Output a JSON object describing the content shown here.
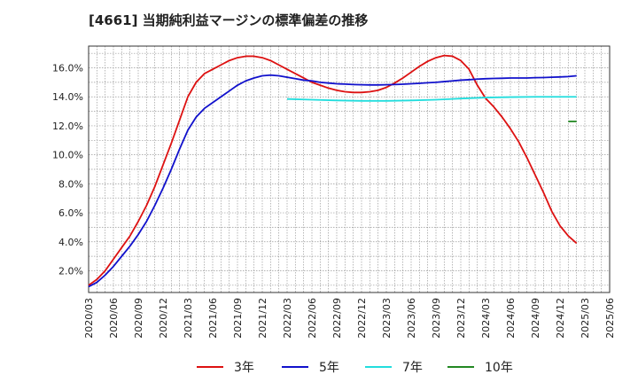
{
  "chart_data": {
    "type": "line",
    "title": "[4661]  当期純利益マージンの標準偏差の推移",
    "xlabel": "",
    "ylabel": "",
    "ylim": [
      0.5,
      17.5
    ],
    "xlim": [
      "2020/03",
      "2025/06"
    ],
    "grid": true,
    "legend_position": "bottom",
    "y_ticks": [
      "2.0%",
      "4.0%",
      "6.0%",
      "8.0%",
      "10.0%",
      "12.0%",
      "14.0%",
      "16.0%"
    ],
    "x_ticks": [
      "2020/03",
      "2020/06",
      "2020/09",
      "2020/12",
      "2021/03",
      "2021/06",
      "2021/09",
      "2021/12",
      "2022/03",
      "2022/06",
      "2022/09",
      "2022/12",
      "2023/03",
      "2023/06",
      "2023/09",
      "2023/12",
      "2024/03",
      "2024/06",
      "2024/09",
      "2024/12",
      "2025/03",
      "2025/06"
    ],
    "series": [
      {
        "name": "3年",
        "color": "#dd1111",
        "points": [
          [
            "2020/03",
            1.0
          ],
          [
            "2020/04",
            1.4
          ],
          [
            "2020/05",
            2.0
          ],
          [
            "2020/06",
            2.8
          ],
          [
            "2020/07",
            3.6
          ],
          [
            "2020/08",
            4.4
          ],
          [
            "2020/09",
            5.4
          ],
          [
            "2020/10",
            6.5
          ],
          [
            "2020/11",
            7.8
          ],
          [
            "2020/12",
            9.3
          ],
          [
            "2021/01",
            10.8
          ],
          [
            "2021/02",
            12.4
          ],
          [
            "2021/03",
            14.0
          ],
          [
            "2021/04",
            15.0
          ],
          [
            "2021/05",
            15.6
          ],
          [
            "2021/06",
            15.9
          ],
          [
            "2021/07",
            16.2
          ],
          [
            "2021/08",
            16.5
          ],
          [
            "2021/09",
            16.7
          ],
          [
            "2021/10",
            16.8
          ],
          [
            "2021/11",
            16.8
          ],
          [
            "2021/12",
            16.7
          ],
          [
            "2022/01",
            16.5
          ],
          [
            "2022/02",
            16.2
          ],
          [
            "2022/03",
            15.9
          ],
          [
            "2022/04",
            15.6
          ],
          [
            "2022/05",
            15.3
          ],
          [
            "2022/06",
            15.0
          ],
          [
            "2022/07",
            14.8
          ],
          [
            "2022/08",
            14.6
          ],
          [
            "2022/09",
            14.45
          ],
          [
            "2022/10",
            14.35
          ],
          [
            "2022/11",
            14.3
          ],
          [
            "2022/12",
            14.3
          ],
          [
            "2023/01",
            14.35
          ],
          [
            "2023/02",
            14.45
          ],
          [
            "2023/03",
            14.65
          ],
          [
            "2023/04",
            14.95
          ],
          [
            "2023/05",
            15.3
          ],
          [
            "2023/06",
            15.7
          ],
          [
            "2023/07",
            16.1
          ],
          [
            "2023/08",
            16.45
          ],
          [
            "2023/09",
            16.7
          ],
          [
            "2023/10",
            16.85
          ],
          [
            "2023/11",
            16.8
          ],
          [
            "2023/12",
            16.5
          ],
          [
            "2024/01",
            15.9
          ],
          [
            "2024/02",
            14.8
          ],
          [
            "2024/03",
            13.9
          ],
          [
            "2024/04",
            13.3
          ],
          [
            "2024/05",
            12.6
          ],
          [
            "2024/06",
            11.8
          ],
          [
            "2024/07",
            10.9
          ],
          [
            "2024/08",
            9.8
          ],
          [
            "2024/09",
            8.6
          ],
          [
            "2024/10",
            7.4
          ],
          [
            "2024/11",
            6.1
          ],
          [
            "2024/12",
            5.1
          ],
          [
            "2025/01",
            4.4
          ],
          [
            "2025/02",
            3.9
          ]
        ]
      },
      {
        "name": "5年",
        "color": "#1111cc",
        "points": [
          [
            "2020/03",
            0.9
          ],
          [
            "2020/04",
            1.2
          ],
          [
            "2020/05",
            1.7
          ],
          [
            "2020/06",
            2.3
          ],
          [
            "2020/07",
            3.0
          ],
          [
            "2020/08",
            3.7
          ],
          [
            "2020/09",
            4.5
          ],
          [
            "2020/10",
            5.4
          ],
          [
            "2020/11",
            6.5
          ],
          [
            "2020/12",
            7.7
          ],
          [
            "2021/01",
            9.0
          ],
          [
            "2021/02",
            10.4
          ],
          [
            "2021/03",
            11.7
          ],
          [
            "2021/04",
            12.6
          ],
          [
            "2021/05",
            13.2
          ],
          [
            "2021/06",
            13.6
          ],
          [
            "2021/07",
            14.0
          ],
          [
            "2021/08",
            14.4
          ],
          [
            "2021/09",
            14.8
          ],
          [
            "2021/10",
            15.1
          ],
          [
            "2021/11",
            15.3
          ],
          [
            "2021/12",
            15.45
          ],
          [
            "2022/01",
            15.5
          ],
          [
            "2022/02",
            15.45
          ],
          [
            "2022/03",
            15.35
          ],
          [
            "2022/04",
            15.25
          ],
          [
            "2022/05",
            15.15
          ],
          [
            "2022/06",
            15.1
          ],
          [
            "2022/07",
            15.0
          ],
          [
            "2022/08",
            14.95
          ],
          [
            "2022/09",
            14.9
          ],
          [
            "2022/10",
            14.88
          ],
          [
            "2022/11",
            14.85
          ],
          [
            "2022/12",
            14.83
          ],
          [
            "2023/01",
            14.82
          ],
          [
            "2023/02",
            14.82
          ],
          [
            "2023/03",
            14.83
          ],
          [
            "2023/04",
            14.85
          ],
          [
            "2023/05",
            14.87
          ],
          [
            "2023/06",
            14.9
          ],
          [
            "2023/07",
            14.93
          ],
          [
            "2023/08",
            14.97
          ],
          [
            "2023/09",
            15.0
          ],
          [
            "2023/10",
            15.05
          ],
          [
            "2023/11",
            15.1
          ],
          [
            "2023/12",
            15.15
          ],
          [
            "2024/01",
            15.18
          ],
          [
            "2024/02",
            15.22
          ],
          [
            "2024/03",
            15.25
          ],
          [
            "2024/04",
            15.27
          ],
          [
            "2024/05",
            15.28
          ],
          [
            "2024/06",
            15.3
          ],
          [
            "2024/07",
            15.3
          ],
          [
            "2024/08",
            15.3
          ],
          [
            "2024/09",
            15.32
          ],
          [
            "2024/10",
            15.33
          ],
          [
            "2024/11",
            15.35
          ],
          [
            "2024/12",
            15.37
          ],
          [
            "2025/01",
            15.4
          ],
          [
            "2025/02",
            15.45
          ]
        ]
      },
      {
        "name": "7年",
        "color": "#22dddd",
        "points": [
          [
            "2022/03",
            13.85
          ],
          [
            "2022/06",
            13.8
          ],
          [
            "2022/09",
            13.75
          ],
          [
            "2022/12",
            13.72
          ],
          [
            "2023/03",
            13.72
          ],
          [
            "2023/06",
            13.75
          ],
          [
            "2023/09",
            13.8
          ],
          [
            "2023/12",
            13.88
          ],
          [
            "2024/03",
            13.95
          ],
          [
            "2024/06",
            13.98
          ],
          [
            "2024/09",
            14.0
          ],
          [
            "2024/12",
            14.0
          ],
          [
            "2025/02",
            14.0
          ]
        ]
      },
      {
        "name": "10年",
        "color": "#228822",
        "points": [
          [
            "2025/01",
            12.3
          ],
          [
            "2025/02",
            12.3
          ]
        ]
      }
    ]
  }
}
